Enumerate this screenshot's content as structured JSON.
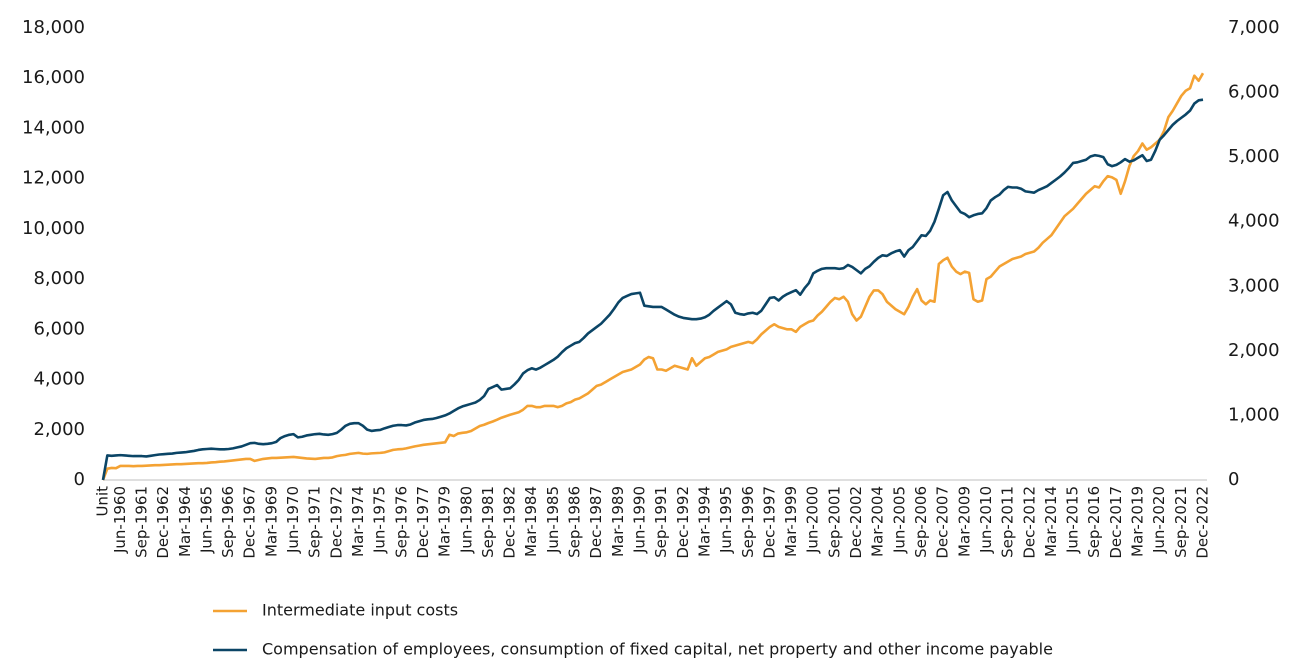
{
  "chart_data": {
    "type": "line",
    "categories": [
      "Unit",
      null,
      null,
      null,
      "Jun-1960",
      null,
      null,
      null,
      null,
      "Sep-1961",
      null,
      null,
      null,
      null,
      "Dec-1962",
      null,
      null,
      null,
      null,
      "Mar-1964",
      null,
      null,
      null,
      null,
      "Jun-1965",
      null,
      null,
      null,
      null,
      "Sep-1966",
      null,
      null,
      null,
      null,
      "Dec-1967",
      null,
      null,
      null,
      null,
      "Mar-1969",
      null,
      null,
      null,
      null,
      "Jun-1970",
      null,
      null,
      null,
      null,
      "Sep-1971",
      null,
      null,
      null,
      null,
      "Dec-1972",
      null,
      null,
      null,
      null,
      "Mar-1974",
      null,
      null,
      null,
      null,
      "Jun-1975",
      null,
      null,
      null,
      null,
      "Sep-1976",
      null,
      null,
      null,
      null,
      "Dec-1977",
      null,
      null,
      null,
      null,
      "Mar-1979",
      null,
      null,
      null,
      null,
      "Jun-1980",
      null,
      null,
      null,
      null,
      "Sep-1981",
      null,
      null,
      null,
      null,
      "Dec-1982",
      null,
      null,
      null,
      null,
      "Mar-1984",
      null,
      null,
      null,
      null,
      "Jun-1985",
      null,
      null,
      null,
      null,
      "Sep-1986",
      null,
      null,
      null,
      null,
      "Dec-1987",
      null,
      null,
      null,
      null,
      "Mar-1989",
      null,
      null,
      null,
      null,
      "Jun-1990",
      null,
      null,
      null,
      null,
      "Sep-1991",
      null,
      null,
      null,
      null,
      "Dec-1992",
      null,
      null,
      null,
      null,
      "Mar-1994",
      null,
      null,
      null,
      null,
      "Jun-1995",
      null,
      null,
      null,
      null,
      "Sep-1996",
      null,
      null,
      null,
      null,
      "Dec-1997",
      null,
      null,
      null,
      null,
      "Mar-1999",
      null,
      null,
      null,
      null,
      "Jun-2000",
      null,
      null,
      null,
      null,
      "Sep-2001",
      null,
      null,
      null,
      null,
      "Dec-2002",
      null,
      null,
      null,
      null,
      "Mar-2004",
      null,
      null,
      null,
      null,
      "Jun-2005",
      null,
      null,
      null,
      null,
      "Sep-2006",
      null,
      null,
      null,
      null,
      "Dec-2007",
      null,
      null,
      null,
      null,
      "Mar-2009",
      null,
      null,
      null,
      null,
      "Jun-2010",
      null,
      null,
      null,
      null,
      "Sep-2011",
      null,
      null,
      null,
      null,
      "Dec-2012",
      null,
      null,
      null,
      null,
      "Mar-2014",
      null,
      null,
      null,
      null,
      "Jun-2015",
      null,
      null,
      null,
      null,
      "Sep-2016",
      null,
      null,
      null,
      null,
      "Dec-2017",
      null,
      null,
      null,
      null,
      "Mar-2019",
      null,
      null,
      null,
      null,
      "Jun-2020",
      null,
      null,
      null,
      null,
      "Sep-2021",
      null,
      null,
      null,
      null,
      "Dec-2022"
    ],
    "series": [
      {
        "name": "Intermediate input costs",
        "color": "#f4a233",
        "values": [
          0,
          450,
          480,
          470,
          560,
          560,
          560,
          550,
          560,
          560,
          570,
          580,
          590,
          590,
          600,
          610,
          620,
          630,
          630,
          640,
          650,
          660,
          670,
          670,
          680,
          700,
          710,
          730,
          740,
          760,
          780,
          800,
          820,
          840,
          840,
          760,
          800,
          840,
          860,
          880,
          880,
          890,
          900,
          910,
          920,
          900,
          880,
          860,
          850,
          840,
          860,
          880,
          880,
          900,
          950,
          980,
          1000,
          1040,
          1060,
          1080,
          1050,
          1040,
          1060,
          1070,
          1080,
          1100,
          1150,
          1200,
          1220,
          1230,
          1260,
          1300,
          1340,
          1370,
          1400,
          1420,
          1440,
          1460,
          1480,
          1500,
          1800,
          1750,
          1850,
          1880,
          1900,
          1950,
          2050,
          2150,
          2200,
          2270,
          2330,
          2400,
          2480,
          2540,
          2600,
          2650,
          2700,
          2800,
          2950,
          2950,
          2900,
          2900,
          2950,
          2950,
          2950,
          2900,
          2950,
          3050,
          3100,
          3200,
          3250,
          3350,
          3450,
          3600,
          3750,
          3800,
          3900,
          4000,
          4100,
          4200,
          4300,
          4350,
          4400,
          4500,
          4600,
          4800,
          4900,
          4850,
          4400,
          4400,
          4350,
          4450,
          4550,
          4500,
          4450,
          4400,
          4850,
          4550,
          4700,
          4850,
          4900,
          5000,
          5100,
          5150,
          5200,
          5300,
          5350,
          5400,
          5450,
          5500,
          5450,
          5600,
          5800,
          5950,
          6100,
          6200,
          6100,
          6050,
          6000,
          6000,
          5900,
          6100,
          6200,
          6300,
          6350,
          6550,
          6700,
          6900,
          7100,
          7250,
          7200,
          7300,
          7100,
          6600,
          6350,
          6500,
          6900,
          7300,
          7550,
          7550,
          7400,
          7100,
          6950,
          6800,
          6700,
          6600,
          6900,
          7300,
          7600,
          7150,
          7000,
          7150,
          7100,
          8600,
          8750,
          8850,
          8500,
          8300,
          8200,
          8300,
          8250,
          7200,
          7100,
          7150,
          8000,
          8100,
          8300,
          8500,
          8600,
          8700,
          8800,
          8850,
          8900,
          9000,
          9050,
          9100,
          9250,
          9450,
          9600,
          9750,
          10000,
          10250,
          10500,
          10650,
          10800,
          11000,
          11200,
          11400,
          11550,
          11700,
          11650,
          11900,
          12100,
          12050,
          11950,
          11400,
          11900,
          12500,
          12900,
          13100,
          13400,
          13150,
          13250,
          13400,
          13550,
          13900,
          14450,
          14700,
          15000,
          15300,
          15500,
          15600,
          16100,
          15900,
          16200
        ]
      },
      {
        "name": "Compensation of employees, consumption of fixed capital, net property and other income payable",
        "color": "#0b4566",
        "axis": "y2",
        "values": [
          0,
          380,
          375,
          380,
          385,
          380,
          375,
          370,
          370,
          370,
          365,
          375,
          385,
          395,
          400,
          405,
          410,
          420,
          425,
          430,
          440,
          450,
          465,
          475,
          480,
          485,
          480,
          475,
          475,
          480,
          490,
          505,
          520,
          545,
          570,
          575,
          560,
          555,
          560,
          570,
          590,
          650,
          680,
          700,
          710,
          660,
          670,
          690,
          700,
          710,
          715,
          705,
          700,
          710,
          730,
          780,
          840,
          870,
          880,
          880,
          840,
          780,
          760,
          770,
          775,
          800,
          820,
          840,
          850,
          850,
          845,
          860,
          890,
          910,
          930,
          940,
          945,
          960,
          980,
          1000,
          1030,
          1070,
          1110,
          1140,
          1160,
          1180,
          1200,
          1240,
          1300,
          1410,
          1440,
          1470,
          1400,
          1410,
          1420,
          1480,
          1550,
          1650,
          1700,
          1730,
          1710,
          1740,
          1780,
          1820,
          1860,
          1910,
          1980,
          2040,
          2080,
          2120,
          2140,
          2200,
          2270,
          2320,
          2370,
          2420,
          2490,
          2560,
          2650,
          2750,
          2820,
          2850,
          2880,
          2890,
          2900,
          2700,
          2690,
          2680,
          2680,
          2680,
          2640,
          2600,
          2560,
          2530,
          2510,
          2500,
          2490,
          2490,
          2500,
          2520,
          2560,
          2620,
          2670,
          2720,
          2770,
          2720,
          2590,
          2570,
          2560,
          2580,
          2590,
          2570,
          2620,
          2720,
          2820,
          2830,
          2780,
          2840,
          2880,
          2910,
          2940,
          2870,
          2970,
          3050,
          3200,
          3240,
          3270,
          3280,
          3280,
          3280,
          3270,
          3280,
          3330,
          3300,
          3250,
          3200,
          3270,
          3310,
          3380,
          3440,
          3480,
          3470,
          3510,
          3540,
          3560,
          3460,
          3560,
          3610,
          3700,
          3790,
          3780,
          3860,
          4000,
          4200,
          4410,
          4460,
          4330,
          4240,
          4150,
          4120,
          4070,
          4100,
          4120,
          4130,
          4210,
          4330,
          4380,
          4420,
          4490,
          4540,
          4530,
          4530,
          4510,
          4470,
          4460,
          4450,
          4490,
          4520,
          4550,
          4600,
          4650,
          4700,
          4760,
          4830,
          4910,
          4920,
          4940,
          4960,
          5010,
          5030,
          5020,
          5000,
          4890,
          4860,
          4880,
          4920,
          4970,
          4930,
          4950,
          4990,
          5030,
          4940,
          4960,
          5100,
          5270,
          5340,
          5420,
          5500,
          5560,
          5610,
          5660,
          5720,
          5830,
          5880,
          5890
        ]
      }
    ],
    "ylim": [
      0,
      18000
    ],
    "yticks": [
      0,
      {
        "value": 2000,
        "label": "2,000"
      },
      {
        "value": 4000,
        "label": "4,000"
      },
      {
        "value": 6000,
        "label": "6,000"
      },
      {
        "value": 8000,
        "label": "8,000"
      },
      {
        "value": 10000,
        "label": "10,000"
      },
      {
        "value": 12000,
        "label": "12,000"
      },
      {
        "value": 14000,
        "label": "14,000"
      },
      {
        "value": 16000,
        "label": "16,000"
      },
      {
        "value": 18000,
        "label": "18,000"
      }
    ],
    "y2lim": [
      0,
      7000
    ],
    "y2ticks": [
      0,
      {
        "value": 1000,
        "label": "1,000"
      },
      {
        "value": 2000,
        "label": "2,000"
      },
      {
        "value": 3000,
        "label": "3,000"
      },
      {
        "value": 4000,
        "label": "4,000"
      },
      {
        "value": 5000,
        "label": "5,000"
      },
      {
        "value": 6000,
        "label": "6,000"
      },
      {
        "value": 7000,
        "label": "7,000"
      }
    ],
    "grid": false,
    "legend": "bottom"
  }
}
